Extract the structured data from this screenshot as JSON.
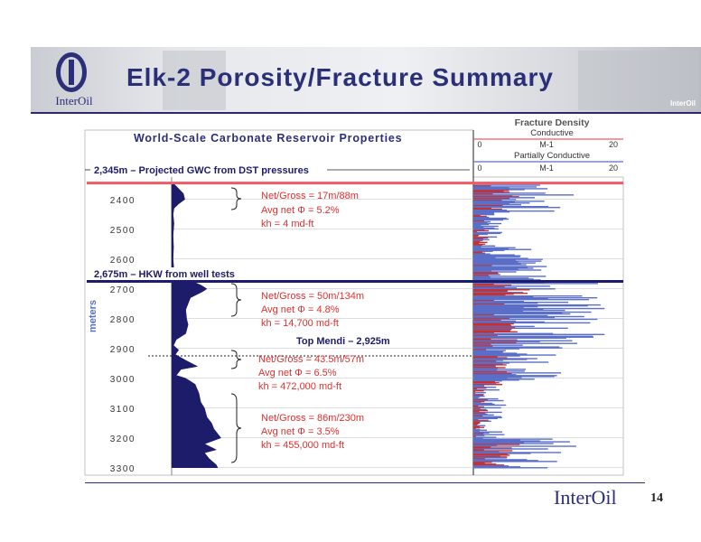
{
  "slide": {
    "title": "Elk-2 Porosity/Fracture Summary",
    "logo_text": "InterOil",
    "header_tag": "InterOil",
    "footer_logo": "InterOil",
    "page_number": "14"
  },
  "colors": {
    "navy": "#1c1c6a",
    "red": "#e03030",
    "gwc_line": "#ef5a64",
    "hkw_line": "#1c1c6a",
    "frac_blue": "#5a6fc8",
    "frac_red": "#c83030"
  },
  "chart_data": {
    "type": "area",
    "title": "World-Scale Carbonate Reservoir Properties",
    "ylabel": "meters",
    "ylim": [
      2325,
      3325
    ],
    "y_ticks": [
      2400,
      2500,
      2600,
      2700,
      2800,
      2900,
      3000,
      3100,
      3200,
      3300
    ],
    "porosity_profile": {
      "depth": [
        2345,
        2380,
        2400,
        2415,
        2430,
        2450,
        2480,
        2520,
        2560,
        2600,
        2640,
        2660,
        2675,
        2690,
        2700,
        2710,
        2730,
        2750,
        2770,
        2800,
        2820,
        2850,
        2870,
        2890,
        2905,
        2920,
        2940,
        2960,
        2970,
        2990,
        3000,
        3020,
        3050,
        3080,
        3100,
        3130,
        3150,
        3170,
        3200,
        3220,
        3240,
        3250,
        3270,
        3290,
        3300
      ],
      "value": [
        0.3,
        2.5,
        2.8,
        1.5,
        0.5,
        0.3,
        0.5,
        0.3,
        0.4,
        0.3,
        0.5,
        1.5,
        4.5,
        6.5,
        7.5,
        6.5,
        4.0,
        3.5,
        3.0,
        3.2,
        3.5,
        3.0,
        1.0,
        0.4,
        1.5,
        0.8,
        3.0,
        5.5,
        2.0,
        1.0,
        3.0,
        5.0,
        5.8,
        6.2,
        7.0,
        7.5,
        8.5,
        9.0,
        10.5,
        7.0,
        9.5,
        7.0,
        8.0,
        9.5,
        9.8
      ]
    },
    "fracture_density": {
      "title": "Fracture Density",
      "scales": [
        {
          "name": "Conductive",
          "min_label": "0",
          "mid_label": "M-1",
          "max_label": "20"
        },
        {
          "name": "Partially Conductive",
          "min_label": "0",
          "mid_label": "M-1",
          "max_label": "20"
        }
      ],
      "xlim": [
        0,
        20
      ]
    },
    "annotations": [
      {
        "text": "2,345m – Projected GWC from DST pressures",
        "depth": 2345
      },
      {
        "text": "2,675m – HKW from well tests",
        "depth": 2675
      },
      {
        "text": "Top Mendi – 2,925m",
        "depth": 2925
      }
    ],
    "zones": [
      {
        "net_gross": "Net/Gross = 17m/88m",
        "avg_net": "Avg net Φ = 5.2%",
        "kh": "kh = 4 md-ft",
        "top": 2345,
        "bottom": 2433
      },
      {
        "net_gross": "Net/Gross = 50m/134m",
        "avg_net": "Avg net Φ = 4.8%",
        "kh": "kh = 14,700 md-ft",
        "top": 2675,
        "bottom": 2809
      },
      {
        "net_gross": "Net/Gross = 43.5m/57m",
        "avg_net": "Avg net Φ = 6.5%",
        "kh": "kh = 472,000 md-ft",
        "top": 2925,
        "bottom": 2982
      },
      {
        "net_gross": "Net/Gross = 86m/230m",
        "avg_net": "Avg net Φ = 3.5%",
        "kh": "kh = 455,000 md-ft",
        "top": 3070,
        "bottom": 3300
      }
    ]
  }
}
